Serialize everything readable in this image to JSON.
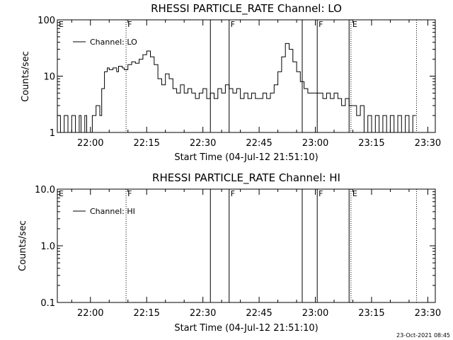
{
  "chart_data": [
    {
      "type": "line",
      "title": "RHESSI PARTICLE_RATE Channel: LO",
      "xlabel": "Start Time (04-Jul-12 21:51:10)",
      "ylabel": "Counts/sec",
      "yscale": "log",
      "xlim": [
        "21:51:10",
        "23:32:00"
      ],
      "ylim": [
        1,
        100
      ],
      "xtick_labels": [
        "22:00",
        "22:15",
        "22:30",
        "22:45",
        "23:00",
        "23:15",
        "23:30"
      ],
      "ytick_labels": [
        "1",
        "10",
        "100"
      ],
      "legend": "top-left",
      "grid": false,
      "series": [
        {
          "name": "Channel: LO",
          "color": "#000000",
          "x": [
            "21:51:10",
            "21:52:00",
            "21:53:00",
            "21:54:00",
            "21:55:00",
            "21:56:00",
            "21:57:00",
            "21:57:30",
            "21:58:30",
            "21:59:00",
            "22:00:30",
            "22:01:30",
            "22:02:00",
            "22:02:30",
            "22:03:00",
            "22:03:45",
            "22:04:30",
            "22:05:00",
            "22:06:00",
            "22:07:00",
            "22:07:30",
            "22:08:30",
            "22:09:00",
            "22:10:00",
            "22:11:00",
            "22:12:00",
            "22:13:00",
            "22:14:00",
            "22:15:00",
            "22:16:00",
            "22:17:00",
            "22:18:00",
            "22:19:00",
            "22:20:00",
            "22:21:00",
            "22:22:00",
            "22:23:00",
            "22:24:00",
            "22:25:00",
            "22:26:00",
            "22:27:00",
            "22:28:00",
            "22:29:00",
            "22:30:00",
            "22:31:00",
            "22:32:00",
            "22:33:00",
            "22:34:00",
            "22:35:00",
            "22:36:00",
            "22:37:00",
            "22:38:00",
            "22:39:00",
            "22:40:00",
            "22:41:00",
            "22:42:00",
            "22:43:00",
            "22:44:00",
            "22:45:00",
            "22:46:00",
            "22:47:00",
            "22:48:00",
            "22:49:00",
            "22:50:00",
            "22:51:00",
            "22:52:00",
            "22:53:00",
            "22:54:00",
            "22:55:00",
            "22:56:00",
            "22:57:00",
            "22:58:00",
            "22:59:00",
            "23:00:00",
            "23:01:00",
            "23:02:00",
            "23:03:00",
            "23:04:00",
            "23:05:00",
            "23:06:00",
            "23:07:00",
            "23:08:00",
            "23:09:00",
            "23:10:00",
            "23:11:00",
            "23:12:00",
            "23:13:00",
            "23:14:00",
            "23:15:00",
            "23:16:00",
            "23:17:00",
            "23:18:00",
            "23:19:00",
            "23:20:00",
            "23:21:00",
            "23:22:00",
            "23:23:00",
            "23:24:00",
            "23:25:00",
            "23:26:00"
          ],
          "y": [
            2,
            1,
            2,
            1,
            2,
            1,
            2,
            1,
            2,
            1,
            2,
            3,
            3,
            2,
            6,
            12,
            14,
            13,
            14,
            12,
            15,
            14,
            13,
            16,
            18,
            17,
            20,
            24,
            28,
            22,
            16,
            9,
            7,
            11,
            9,
            6,
            5,
            7,
            5,
            6,
            5,
            4,
            5,
            6,
            4,
            5,
            4,
            6,
            5,
            7,
            6,
            5,
            6,
            4,
            5,
            4,
            5,
            4,
            4,
            5,
            4,
            5,
            7,
            12,
            22,
            38,
            30,
            18,
            12,
            8,
            6,
            5,
            5,
            5,
            5,
            4,
            5,
            4,
            5,
            4,
            3,
            4,
            3,
            3,
            2,
            3,
            1,
            2,
            1,
            2,
            1,
            2,
            1,
            2,
            1,
            2,
            1,
            2,
            1,
            2
          ]
        }
      ],
      "markers": [
        {
          "time": "22:09:30",
          "label": "F",
          "style": "dotted"
        },
        {
          "time": "22:32:00",
          "label": "",
          "style": "solid"
        },
        {
          "time": "22:37:00",
          "label": "F",
          "style": "solid"
        },
        {
          "time": "22:56:30",
          "label": "",
          "style": "solid"
        },
        {
          "time": "23:00:30",
          "label": "F",
          "style": "solid"
        },
        {
          "time": "23:09:00",
          "label": "",
          "style": "solid"
        },
        {
          "time": "23:09:30",
          "label": "E",
          "style": "dotted"
        },
        {
          "time": "23:27:00",
          "label": "",
          "style": "dotted"
        }
      ],
      "left_flag": "E"
    },
    {
      "type": "line",
      "title": "RHESSI PARTICLE_RATE Channel: HI",
      "xlabel": "Start Time (04-Jul-12 21:51:10)",
      "ylabel": "Counts/sec",
      "yscale": "log",
      "xlim": [
        "21:51:10",
        "23:32:00"
      ],
      "ylim": [
        0.1,
        10
      ],
      "xtick_labels": [
        "22:00",
        "22:15",
        "22:30",
        "22:45",
        "23:00",
        "23:15",
        "23:30"
      ],
      "ytick_labels": [
        "0.1",
        "1.0",
        "10.0"
      ],
      "legend": "top-left",
      "grid": false,
      "series": [
        {
          "name": "Channel: HI",
          "color": "#000000",
          "x": [],
          "y": []
        }
      ],
      "markers": [
        {
          "time": "22:09:30",
          "label": "F",
          "style": "dotted"
        },
        {
          "time": "22:32:00",
          "label": "",
          "style": "solid"
        },
        {
          "time": "22:37:00",
          "label": "F",
          "style": "solid"
        },
        {
          "time": "22:56:30",
          "label": "",
          "style": "solid"
        },
        {
          "time": "23:00:30",
          "label": "F",
          "style": "solid"
        },
        {
          "time": "23:09:00",
          "label": "",
          "style": "solid"
        },
        {
          "time": "23:09:30",
          "label": "E",
          "style": "dotted"
        },
        {
          "time": "23:27:00",
          "label": "",
          "style": "dotted"
        }
      ],
      "left_flag": "E"
    }
  ],
  "footer": {
    "timestamp": "23-Oct-2021 08:45"
  }
}
